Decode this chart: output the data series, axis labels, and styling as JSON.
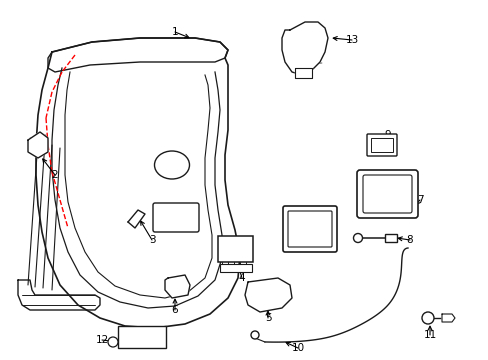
{
  "bg_color": "#ffffff",
  "line_color": "#1a1a1a",
  "red_dashed_color": "#ff0000",
  "figsize": [
    4.89,
    3.6
  ],
  "dpi": 100
}
